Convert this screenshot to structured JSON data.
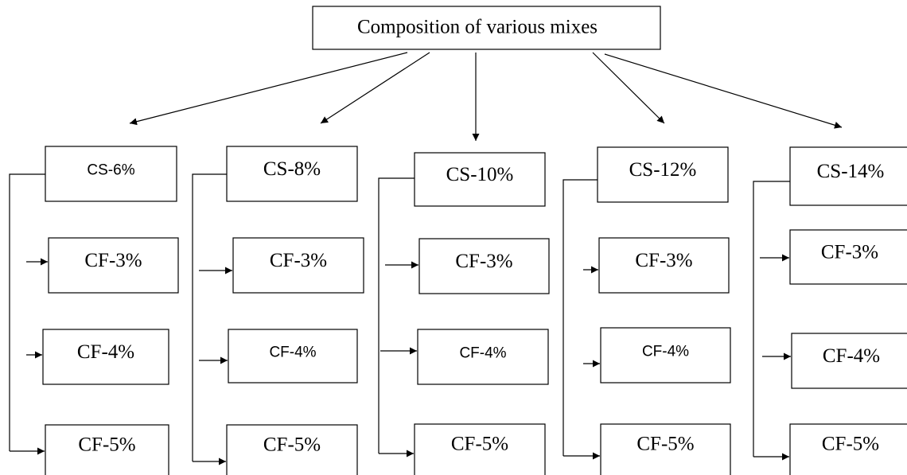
{
  "title": "Composition of various mixes",
  "columns": [
    {
      "label": "CS-6%",
      "items": [
        "CF-3%",
        "CF-4%",
        "CF-5%"
      ]
    },
    {
      "label": "CS-8%",
      "items": [
        "CF-3%",
        "CF-4%",
        "CF-5%"
      ]
    },
    {
      "label": "CS-10%",
      "items": [
        "CF-3%",
        "CF-4%",
        "CF-5%"
      ]
    },
    {
      "label": "CS-12%",
      "items": [
        "CF-3%",
        "CF-4%",
        "CF-5%"
      ]
    },
    {
      "label": "CS-14%",
      "items": [
        "CF-3%",
        "CF-4%",
        "CF-5%"
      ]
    }
  ]
}
